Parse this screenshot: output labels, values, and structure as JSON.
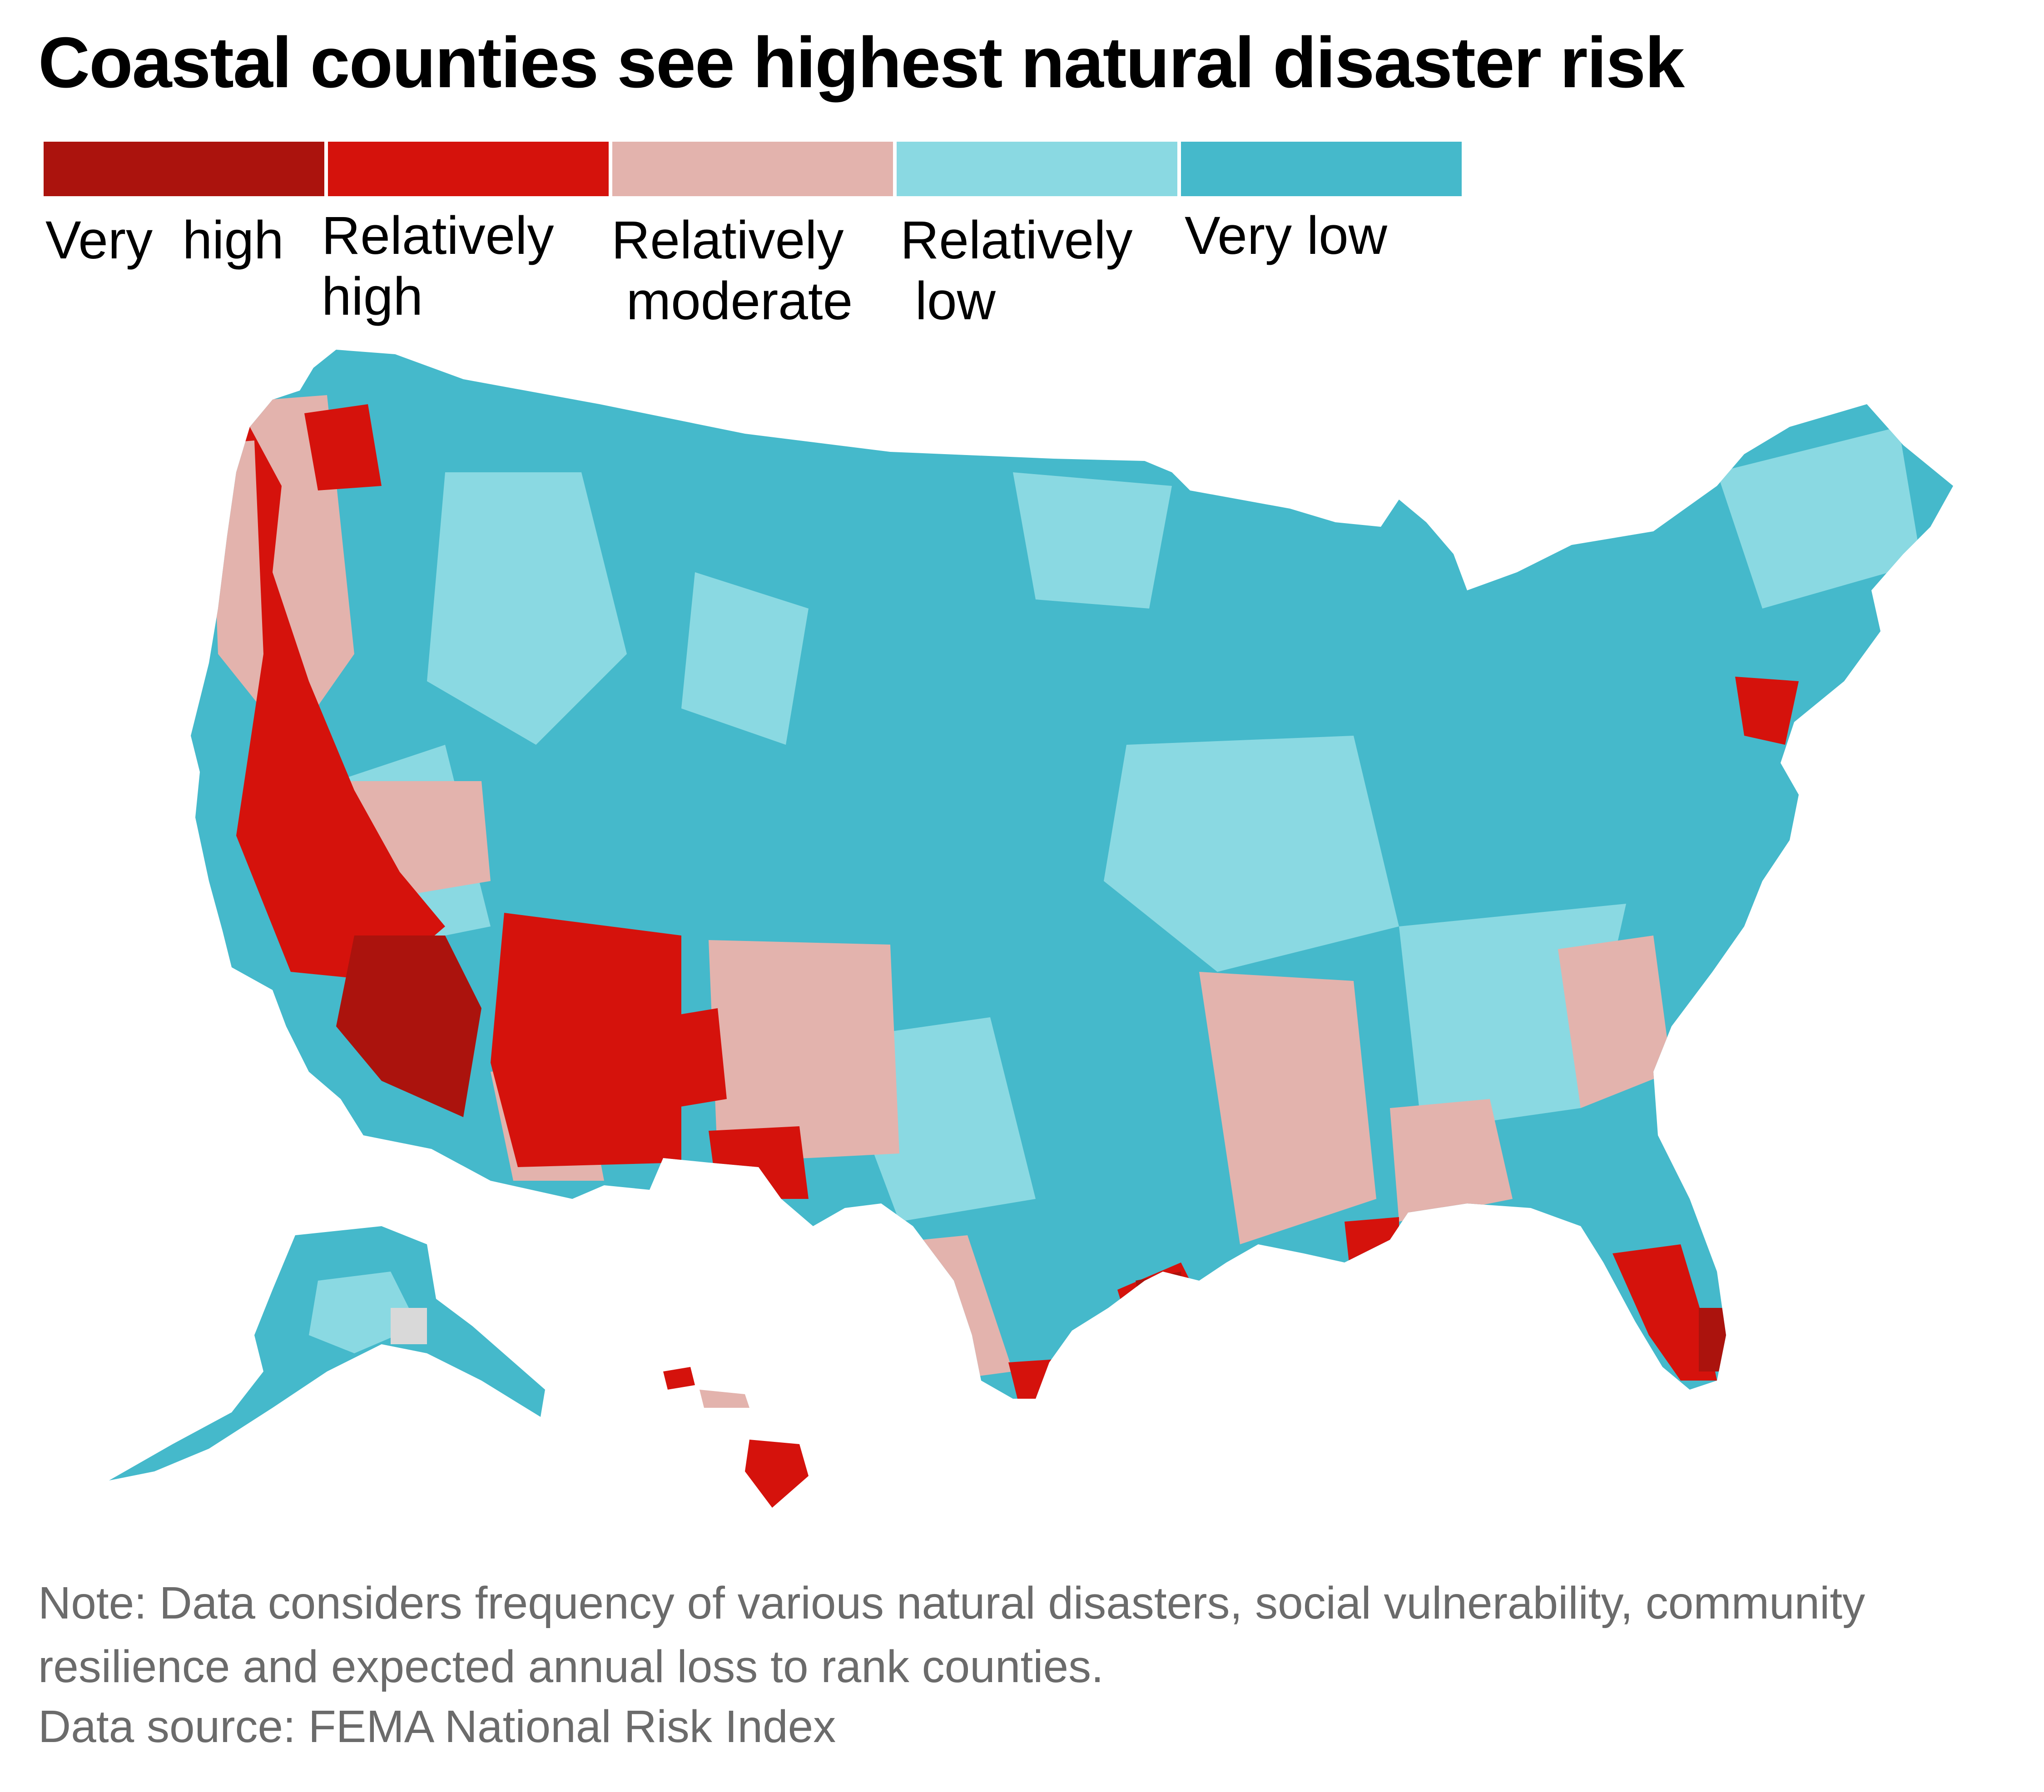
{
  "title": "Coastal counties see highest natural disaster risk",
  "legend": {
    "items": [
      {
        "label": "Very  high",
        "color": "#ab130d"
      },
      {
        "label": "Relatively\nhigh",
        "color": "#d5120c"
      },
      {
        "label": "Relatively\n moderate",
        "color": "#e3b3ad"
      },
      {
        "label": "Relatively\n low",
        "color": "#8ad9e2"
      },
      {
        "label": "Very low",
        "color": "#45b9cb"
      }
    ]
  },
  "map": {
    "region": "United States counties",
    "no_data_color": "#d9d9d9"
  },
  "footer": {
    "note": "Note: Data considers frequency of various natural disasters, social vulnerability, community resilience and expected annual loss to rank counties.",
    "source": "Data source: FEMA National Risk Index"
  }
}
